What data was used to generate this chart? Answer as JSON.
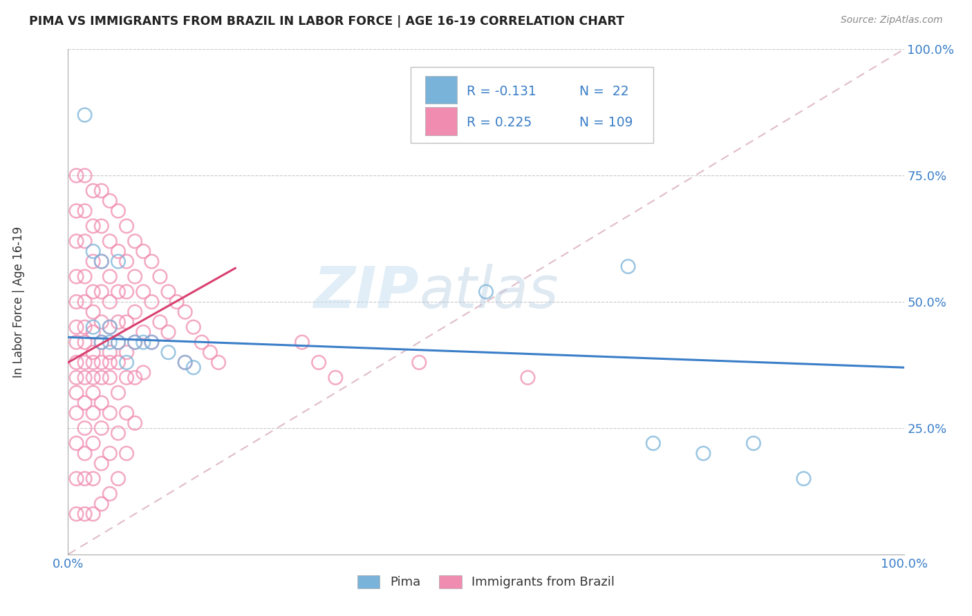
{
  "title": "PIMA VS IMMIGRANTS FROM BRAZIL IN LABOR FORCE | AGE 16-19 CORRELATION CHART",
  "source": "Source: ZipAtlas.com",
  "ylabel": "In Labor Force | Age 16-19",
  "xlim": [
    0.0,
    1.0
  ],
  "ylim": [
    0.0,
    1.0
  ],
  "ytick_positions": [
    0.0,
    0.25,
    0.5,
    0.75,
    1.0
  ],
  "pima_color": "#7ab3d9",
  "brazil_color": "#f08cb0",
  "pima_line_color": "#3a7ec8",
  "brazil_line_color": "#d94070",
  "ref_line_color": "#e0a0b0",
  "watermark_zip": "ZIP",
  "watermark_atlas": "atlas",
  "R_pima": -0.131,
  "N_pima": 22,
  "R_brazil": 0.225,
  "N_brazil": 109,
  "legend_text_color": "#3a7ec8",
  "pima_points": [
    [
      0.02,
      0.87
    ],
    [
      0.03,
      0.6
    ],
    [
      0.03,
      0.45
    ],
    [
      0.04,
      0.58
    ],
    [
      0.04,
      0.42
    ],
    [
      0.05,
      0.45
    ],
    [
      0.05,
      0.42
    ],
    [
      0.06,
      0.58
    ],
    [
      0.06,
      0.42
    ],
    [
      0.07,
      0.38
    ],
    [
      0.08,
      0.42
    ],
    [
      0.09,
      0.42
    ],
    [
      0.1,
      0.42
    ],
    [
      0.12,
      0.4
    ],
    [
      0.14,
      0.38
    ],
    [
      0.15,
      0.37
    ],
    [
      0.5,
      0.52
    ],
    [
      0.67,
      0.57
    ],
    [
      0.7,
      0.22
    ],
    [
      0.76,
      0.2
    ],
    [
      0.82,
      0.22
    ],
    [
      0.88,
      0.15
    ]
  ],
  "brazil_points": [
    [
      0.01,
      0.75
    ],
    [
      0.01,
      0.68
    ],
    [
      0.01,
      0.62
    ],
    [
      0.01,
      0.55
    ],
    [
      0.01,
      0.5
    ],
    [
      0.01,
      0.45
    ],
    [
      0.01,
      0.42
    ],
    [
      0.01,
      0.38
    ],
    [
      0.01,
      0.35
    ],
    [
      0.01,
      0.32
    ],
    [
      0.01,
      0.28
    ],
    [
      0.01,
      0.22
    ],
    [
      0.01,
      0.15
    ],
    [
      0.01,
      0.08
    ],
    [
      0.02,
      0.75
    ],
    [
      0.02,
      0.68
    ],
    [
      0.02,
      0.62
    ],
    [
      0.02,
      0.55
    ],
    [
      0.02,
      0.5
    ],
    [
      0.02,
      0.45
    ],
    [
      0.02,
      0.42
    ],
    [
      0.02,
      0.38
    ],
    [
      0.02,
      0.35
    ],
    [
      0.02,
      0.3
    ],
    [
      0.02,
      0.25
    ],
    [
      0.02,
      0.2
    ],
    [
      0.02,
      0.15
    ],
    [
      0.02,
      0.08
    ],
    [
      0.03,
      0.72
    ],
    [
      0.03,
      0.65
    ],
    [
      0.03,
      0.58
    ],
    [
      0.03,
      0.52
    ],
    [
      0.03,
      0.48
    ],
    [
      0.03,
      0.44
    ],
    [
      0.03,
      0.4
    ],
    [
      0.03,
      0.38
    ],
    [
      0.03,
      0.35
    ],
    [
      0.03,
      0.32
    ],
    [
      0.03,
      0.28
    ],
    [
      0.03,
      0.22
    ],
    [
      0.03,
      0.15
    ],
    [
      0.03,
      0.08
    ],
    [
      0.04,
      0.72
    ],
    [
      0.04,
      0.65
    ],
    [
      0.04,
      0.58
    ],
    [
      0.04,
      0.52
    ],
    [
      0.04,
      0.46
    ],
    [
      0.04,
      0.42
    ],
    [
      0.04,
      0.38
    ],
    [
      0.04,
      0.35
    ],
    [
      0.04,
      0.3
    ],
    [
      0.04,
      0.25
    ],
    [
      0.04,
      0.18
    ],
    [
      0.04,
      0.1
    ],
    [
      0.05,
      0.7
    ],
    [
      0.05,
      0.62
    ],
    [
      0.05,
      0.55
    ],
    [
      0.05,
      0.5
    ],
    [
      0.05,
      0.45
    ],
    [
      0.05,
      0.4
    ],
    [
      0.05,
      0.38
    ],
    [
      0.05,
      0.35
    ],
    [
      0.05,
      0.28
    ],
    [
      0.05,
      0.2
    ],
    [
      0.05,
      0.12
    ],
    [
      0.06,
      0.68
    ],
    [
      0.06,
      0.6
    ],
    [
      0.06,
      0.52
    ],
    [
      0.06,
      0.46
    ],
    [
      0.06,
      0.42
    ],
    [
      0.06,
      0.38
    ],
    [
      0.06,
      0.32
    ],
    [
      0.06,
      0.24
    ],
    [
      0.06,
      0.15
    ],
    [
      0.07,
      0.65
    ],
    [
      0.07,
      0.58
    ],
    [
      0.07,
      0.52
    ],
    [
      0.07,
      0.46
    ],
    [
      0.07,
      0.4
    ],
    [
      0.07,
      0.35
    ],
    [
      0.07,
      0.28
    ],
    [
      0.07,
      0.2
    ],
    [
      0.08,
      0.62
    ],
    [
      0.08,
      0.55
    ],
    [
      0.08,
      0.48
    ],
    [
      0.08,
      0.42
    ],
    [
      0.08,
      0.35
    ],
    [
      0.08,
      0.26
    ],
    [
      0.09,
      0.6
    ],
    [
      0.09,
      0.52
    ],
    [
      0.09,
      0.44
    ],
    [
      0.09,
      0.36
    ],
    [
      0.1,
      0.58
    ],
    [
      0.1,
      0.5
    ],
    [
      0.1,
      0.42
    ],
    [
      0.11,
      0.55
    ],
    [
      0.11,
      0.46
    ],
    [
      0.12,
      0.52
    ],
    [
      0.12,
      0.44
    ],
    [
      0.13,
      0.5
    ],
    [
      0.14,
      0.48
    ],
    [
      0.14,
      0.38
    ],
    [
      0.15,
      0.45
    ],
    [
      0.16,
      0.42
    ],
    [
      0.17,
      0.4
    ],
    [
      0.18,
      0.38
    ],
    [
      0.28,
      0.42
    ],
    [
      0.3,
      0.38
    ],
    [
      0.32,
      0.35
    ],
    [
      0.42,
      0.38
    ],
    [
      0.55,
      0.35
    ]
  ]
}
